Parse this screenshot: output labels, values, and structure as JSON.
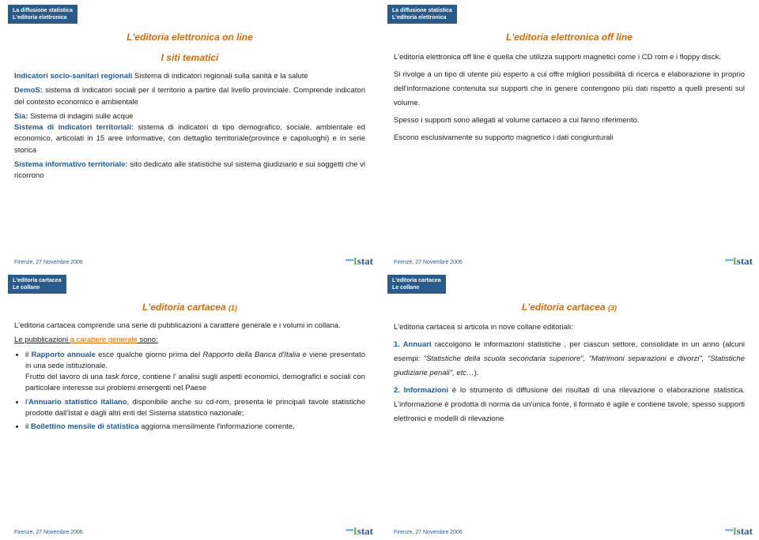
{
  "common": {
    "footer_date": "Firenze, 27 Novembre 2006",
    "tag1_line1": "La diffusione statistica",
    "tag1_line2": "L'editoria elettronica",
    "tag2_line1": "L'editoria cartacea",
    "tag2_line2": "Le collane"
  },
  "slideA": {
    "title1": "L'editoria elettronica on line",
    "title2": "I siti tematici",
    "p1a": "Indicatori socio-sanitari regionali",
    "p1b": " Sistema di indicatori regionali sulla sanità e la salute",
    "p2a": "DemoS:",
    "p2b": " sistema di indicatori sociali per il territorio a partire dal livello provinciale. Comprende indicatori del contesto economico e ambientale",
    "p3a": "Sia:",
    "p3b": " Sistema di indagini sulle acque",
    "p4a": "Sistema di indicatori territoriali:",
    "p4b": " sistema di indicatori di tipo demografico, sociale, ambientale ed economico, articolati in 15 aree informative, con dettaglio territoriale(province e capoluoghi) e in serie storica",
    "p5a": "Sistema informativo territoriale:",
    "p5b": " sito dedicato alle statistiche sul sistema giudiziario e sui soggetti che vi ricorrono"
  },
  "slideB": {
    "title": "L'editoria elettronica off line",
    "p1": "L'editoria elettronica off line è quella che utilizza supporti magnetici come i CD rom e i floppy disck.",
    "p2": "Si rivolge a un tipo di utente più esperto a cui offre migliori possibilità di ricerca e elaborazione in proprio dell'informazione contenuta sui supporti che in genere contengono più dati rispetto a quelli presenti sul volume.",
    "p3": " Spesso i supporti sono allegati al volume cartaceo a cui fanno riferimento.",
    "p4": "Escono esclusivamente su supporto magnetico i dati congiunturali"
  },
  "slideC": {
    "title": "L'editoria cartacea ",
    "title_suffix": "(1)",
    "p1": "L'editoria cartacea comprende una serie di pubblicazioni a carattere generale e i volumi in collana.",
    "lead": "Le pubblicazioni ",
    "lead2": "a  carattere generale",
    "lead3": " sono:",
    "li1a": "il ",
    "li1b": "Rapporto annuale",
    "li1c": " esce qualche giorno prima del ",
    "li1d": "Rapporto della Banca d'Italia ",
    "li1e": " e viene presentato in una sede istituzionale.",
    "li1f": " Frutto del lavoro di una ",
    "li1g": "task force",
    "li1h": ", contiene l' analisi sugli aspetti economici, demografici e sociali con particolare interesse sui problemi emergenti nel Paese",
    "li2a": "l'",
    "li2b": "Annuario statistico italiano",
    "li2c": ", disponibile anche su cd-rom, presenta le principali tavole statistiche prodotte dall'Istat e dagli altri enti del Sistema statistico nazionale;",
    "li3a": "il ",
    "li3b": "Bollettino mensile di statistica ",
    "li3c": "aggiorna mensilmente l'informazione corrente."
  },
  "slideD": {
    "title": "L'editoria cartacea ",
    "title_suffix": "(3)",
    "p1": "L'editoria cartacea si articola in nove collane editoriali:",
    "n1": "1. Annuari ",
    "n1b": "raccolgono le informazioni statistiche , per ciascun settore, consolidate in un anno (alcuni esempi: ",
    "n1q": "\"Statistiche della scuola secondaria superiore\", \"Matrimoni separazioni e divorzi\", \"Statistiche giudiziarie penali\", etc…",
    "n1c": ").",
    "n2": "2. Informazioni ",
    "n2b": "è lo strumento di diffusione dei risultati di una rilevazione o elaborazione statistica. L'informazione è prodotta di norma da un'unica fonte, il formato è agile e contiene tavole, spesso supporti elettronici e modelli di rilevazione"
  }
}
